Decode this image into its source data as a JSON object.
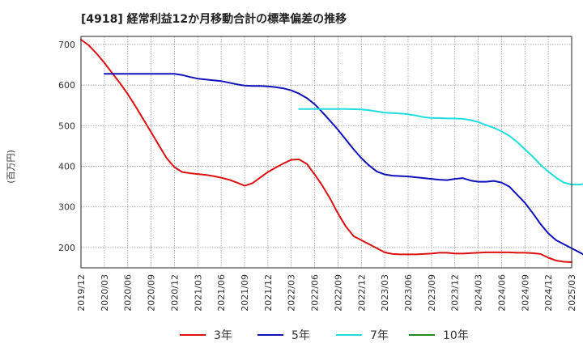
{
  "chart_data": {
    "type": "line",
    "title": "[4918]  経常利益12か月移動合計の標準偏差の推移",
    "ylabel": "(百万円)",
    "xlabel": "",
    "ylim": [
      150,
      720
    ],
    "yticks": [
      200,
      300,
      400,
      500,
      600,
      700
    ],
    "xlim": [
      "2019-12",
      "2025-03"
    ],
    "xticks": [
      "2019/12",
      "2020/03",
      "2020/06",
      "2020/09",
      "2020/12",
      "2021/03",
      "2021/06",
      "2021/09",
      "2021/12",
      "2022/03",
      "2022/06",
      "2022/09",
      "2022/12",
      "2023/03",
      "2023/06",
      "2023/09",
      "2023/12",
      "2024/03",
      "2024/06",
      "2024/09",
      "2024/12",
      "2025/03"
    ],
    "grid": true,
    "legend_position": "bottom",
    "series": [
      {
        "name": "3年",
        "color": "#dd1111",
        "points": [
          [
            "2019-12",
            712
          ],
          [
            "2020-01",
            698
          ],
          [
            "2020-02",
            678
          ],
          [
            "2020-03",
            655
          ],
          [
            "2020-04",
            630
          ],
          [
            "2020-05",
            605
          ],
          [
            "2020-06",
            578
          ],
          [
            "2020-07",
            548
          ],
          [
            "2020-08",
            516
          ],
          [
            "2020-09",
            484
          ],
          [
            "2020-10",
            452
          ],
          [
            "2020-11",
            420
          ],
          [
            "2020-12",
            398
          ],
          [
            "2021-01",
            386
          ],
          [
            "2021-02",
            383
          ],
          [
            "2021-03",
            381
          ],
          [
            "2021-04",
            379
          ],
          [
            "2021-05",
            376
          ],
          [
            "2021-06",
            372
          ],
          [
            "2021-07",
            367
          ],
          [
            "2021-08",
            360
          ],
          [
            "2021-09",
            352
          ],
          [
            "2021-10",
            358
          ],
          [
            "2021-11",
            372
          ],
          [
            "2021-12",
            386
          ],
          [
            "2022-01",
            397
          ],
          [
            "2022-02",
            407
          ],
          [
            "2022-03",
            416
          ],
          [
            "2022-04",
            417
          ],
          [
            "2022-05",
            406
          ],
          [
            "2022-06",
            380
          ],
          [
            "2022-07",
            352
          ],
          [
            "2022-08",
            320
          ],
          [
            "2022-09",
            284
          ],
          [
            "2022-10",
            252
          ],
          [
            "2022-11",
            228
          ],
          [
            "2022-12",
            218
          ],
          [
            "2023-01",
            208
          ],
          [
            "2023-02",
            198
          ],
          [
            "2023-03",
            188
          ],
          [
            "2023-04",
            184
          ],
          [
            "2023-05",
            183
          ],
          [
            "2023-06",
            183
          ],
          [
            "2023-07",
            183
          ],
          [
            "2023-08",
            184
          ],
          [
            "2023-09",
            185
          ],
          [
            "2023-10",
            187
          ],
          [
            "2023-11",
            187
          ],
          [
            "2023-12",
            185
          ],
          [
            "2024-01",
            185
          ],
          [
            "2024-02",
            186
          ],
          [
            "2024-03",
            187
          ],
          [
            "2024-04",
            188
          ],
          [
            "2024-05",
            188
          ],
          [
            "2024-06",
            188
          ],
          [
            "2024-07",
            188
          ],
          [
            "2024-08",
            187
          ],
          [
            "2024-09",
            187
          ],
          [
            "2024-10",
            186
          ],
          [
            "2024-11",
            184
          ],
          [
            "2024-12",
            175
          ],
          [
            "2025-01",
            168
          ],
          [
            "2025-02",
            165
          ],
          [
            "2025-03",
            164
          ]
        ]
      },
      {
        "name": "5年",
        "color": "#1111bb",
        "points": [
          [
            "2020-03",
            628
          ],
          [
            "2020-06",
            628
          ],
          [
            "2020-09",
            628
          ],
          [
            "2020-12",
            628
          ],
          [
            "2021-01",
            625
          ],
          [
            "2021-02",
            620
          ],
          [
            "2021-03",
            616
          ],
          [
            "2021-04",
            614
          ],
          [
            "2021-05",
            612
          ],
          [
            "2021-06",
            610
          ],
          [
            "2021-07",
            606
          ],
          [
            "2021-08",
            602
          ],
          [
            "2021-09",
            599
          ],
          [
            "2021-10",
            598
          ],
          [
            "2021-11",
            598
          ],
          [
            "2021-12",
            597
          ],
          [
            "2022-01",
            595
          ],
          [
            "2022-02",
            592
          ],
          [
            "2022-03",
            587
          ],
          [
            "2022-04",
            579
          ],
          [
            "2022-05",
            568
          ],
          [
            "2022-06",
            553
          ],
          [
            "2022-07",
            533
          ],
          [
            "2022-08",
            512
          ],
          [
            "2022-09",
            490
          ],
          [
            "2022-10",
            466
          ],
          [
            "2022-11",
            442
          ],
          [
            "2022-12",
            420
          ],
          [
            "2023-01",
            402
          ],
          [
            "2023-02",
            387
          ],
          [
            "2023-03",
            380
          ],
          [
            "2023-04",
            377
          ],
          [
            "2023-05",
            376
          ],
          [
            "2023-06",
            375
          ],
          [
            "2023-07",
            373
          ],
          [
            "2023-08",
            371
          ],
          [
            "2023-09",
            369
          ],
          [
            "2023-10",
            367
          ],
          [
            "2023-11",
            366
          ],
          [
            "2023-12",
            369
          ],
          [
            "2024-01",
            371
          ],
          [
            "2024-02",
            365
          ],
          [
            "2024-03",
            362
          ],
          [
            "2024-04",
            362
          ],
          [
            "2024-05",
            364
          ],
          [
            "2024-06",
            360
          ],
          [
            "2024-07",
            350
          ],
          [
            "2024-08",
            330
          ],
          [
            "2024-09",
            310
          ],
          [
            "2024-10",
            285
          ],
          [
            "2024-11",
            258
          ],
          [
            "2024-12",
            235
          ],
          [
            "2025-01",
            218
          ],
          [
            "2025-02",
            208
          ],
          [
            "2025-03",
            198
          ],
          [
            "2025-04",
            188
          ],
          [
            "2025-05",
            178
          ]
        ]
      },
      {
        "name": "7年",
        "color": "#22dddd",
        "points": [
          [
            "2022-04",
            541
          ],
          [
            "2022-06",
            541
          ],
          [
            "2022-08",
            541
          ],
          [
            "2022-10",
            541
          ],
          [
            "2022-12",
            540
          ],
          [
            "2023-01",
            538
          ],
          [
            "2023-02",
            535
          ],
          [
            "2023-03",
            532
          ],
          [
            "2023-04",
            531
          ],
          [
            "2023-05",
            530
          ],
          [
            "2023-06",
            528
          ],
          [
            "2023-07",
            525
          ],
          [
            "2023-08",
            521
          ],
          [
            "2023-09",
            519
          ],
          [
            "2023-10",
            519
          ],
          [
            "2023-11",
            518
          ],
          [
            "2023-12",
            518
          ],
          [
            "2024-01",
            517
          ],
          [
            "2024-02",
            514
          ],
          [
            "2024-03",
            509
          ],
          [
            "2024-04",
            502
          ],
          [
            "2024-05",
            495
          ],
          [
            "2024-06",
            486
          ],
          [
            "2024-07",
            475
          ],
          [
            "2024-08",
            460
          ],
          [
            "2024-09",
            442
          ],
          [
            "2024-10",
            424
          ],
          [
            "2024-11",
            404
          ],
          [
            "2024-12",
            387
          ],
          [
            "2025-01",
            372
          ],
          [
            "2025-02",
            360
          ],
          [
            "2025-03",
            355
          ],
          [
            "2025-04",
            355
          ],
          [
            "2025-05",
            357
          ]
        ]
      },
      {
        "name": "10年",
        "color": "#228822",
        "points": []
      }
    ]
  }
}
